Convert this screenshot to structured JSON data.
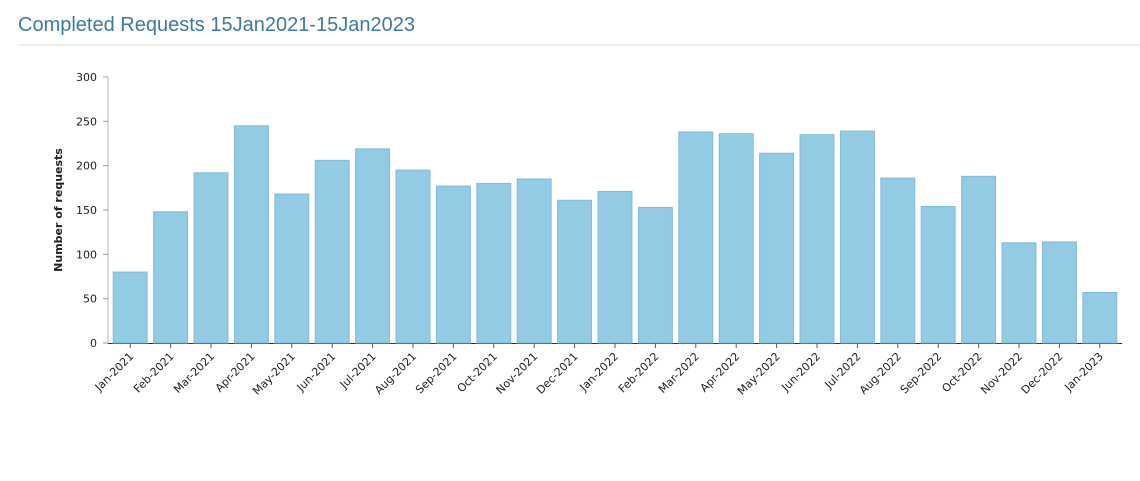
{
  "chart_data": {
    "type": "bar",
    "title": "Completed Requests 15Jan2021-15Jan2023",
    "y_label": "Number of requests",
    "categories": [
      "Jan-2021",
      "Feb-2021",
      "Mar-2021",
      "Apr-2021",
      "May-2021",
      "Jun-2021",
      "Jul-2021",
      "Aug-2021",
      "Sep-2021",
      "Oct-2021",
      "Nov-2021",
      "Dec-2021",
      "Jan-2022",
      "Feb-2022",
      "Mar-2022",
      "Apr-2022",
      "May-2022",
      "Jun-2022",
      "Jul-2022",
      "Aug-2022",
      "Sep-2022",
      "Oct-2022",
      "Nov-2022",
      "Dec-2022",
      "Jan-2023"
    ],
    "values": [
      80,
      148,
      192,
      245,
      168,
      206,
      219,
      195,
      177,
      180,
      185,
      161,
      171,
      153,
      238,
      236,
      214,
      235,
      239,
      186,
      154,
      188,
      113,
      114,
      57
    ],
    "color": "#93cbe4",
    "ylim": [
      0,
      300
    ],
    "yticks": [
      0,
      50,
      100,
      150,
      200,
      250,
      300
    ],
    "grid": false
  }
}
